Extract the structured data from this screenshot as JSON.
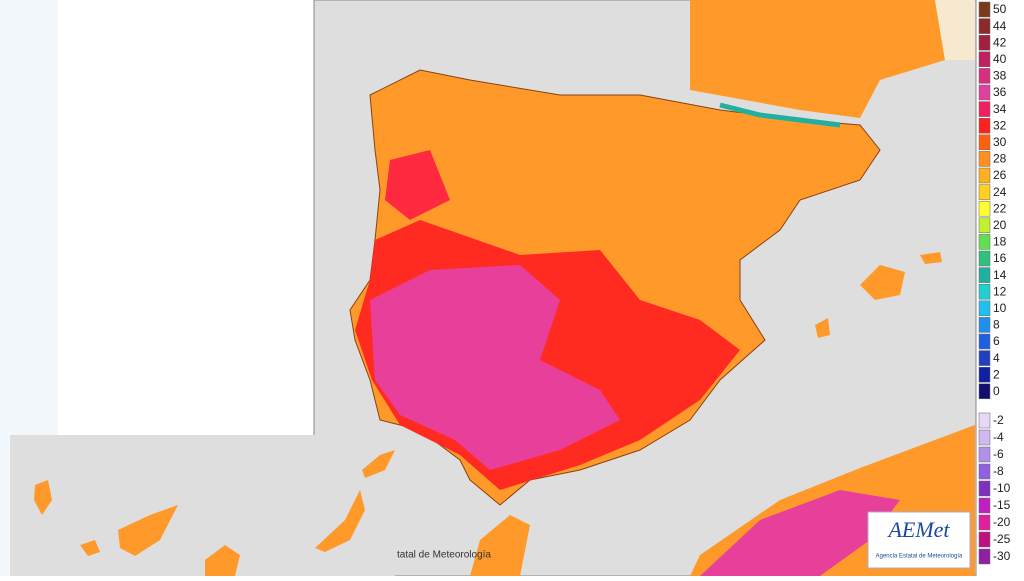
{
  "legend": {
    "entries": [
      {
        "label": 50,
        "color": "#7a3b1a"
      },
      {
        "label": 44,
        "color": "#8b2a2a"
      },
      {
        "label": 42,
        "color": "#a02040"
      },
      {
        "label": 40,
        "color": "#c02060"
      },
      {
        "label": 38,
        "color": "#d83080"
      },
      {
        "label": 36,
        "color": "#e040a0"
      },
      {
        "label": 34,
        "color": "#f02060"
      },
      {
        "label": 32,
        "color": "#ff2020"
      },
      {
        "label": 30,
        "color": "#ff6010"
      },
      {
        "label": 28,
        "color": "#ff9020"
      },
      {
        "label": 26,
        "color": "#ffb020"
      },
      {
        "label": 24,
        "color": "#ffd020"
      },
      {
        "label": 22,
        "color": "#ffff30"
      },
      {
        "label": 20,
        "color": "#c0f030"
      },
      {
        "label": 18,
        "color": "#60e050"
      },
      {
        "label": 16,
        "color": "#30c080"
      },
      {
        "label": 14,
        "color": "#20b0a0"
      },
      {
        "label": 12,
        "color": "#20d0d0"
      },
      {
        "label": 10,
        "color": "#20c0f0"
      },
      {
        "label": 8,
        "color": "#2090f0"
      },
      {
        "label": 6,
        "color": "#2060e0"
      },
      {
        "label": 4,
        "color": "#2040c0"
      },
      {
        "label": 2,
        "color": "#1020a0"
      },
      {
        "label": 0,
        "color": "#101070"
      },
      {
        "label": -2,
        "color": "#e8d8f8"
      },
      {
        "label": -4,
        "color": "#d0b8f0"
      },
      {
        "label": -6,
        "color": "#b090e8"
      },
      {
        "label": -8,
        "color": "#9060e0"
      },
      {
        "label": -10,
        "color": "#8030c0"
      },
      {
        "label": -15,
        "color": "#c020c0"
      },
      {
        "label": -20,
        "color": "#e020a0"
      },
      {
        "label": -25,
        "color": "#c01080"
      },
      {
        "label": -30,
        "color": "#9020a0"
      }
    ]
  },
  "logo": {
    "name": "AEMet",
    "subtitle": "Agencia Estatal de Meteorología"
  },
  "inset_credit": "tatal de Meteorología"
}
